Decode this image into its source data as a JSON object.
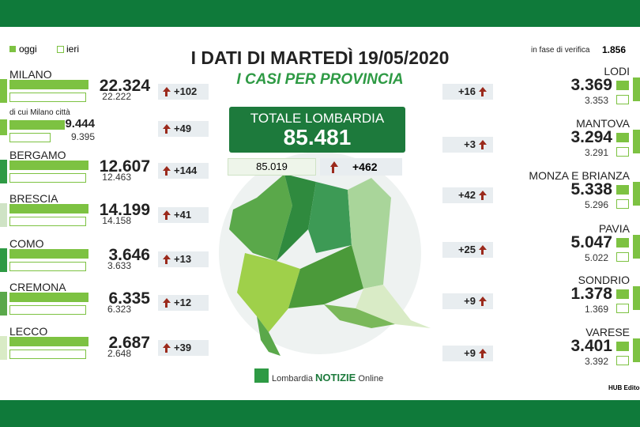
{
  "header": {
    "title": "I DATI DI MARTEDÌ 19/05/2020",
    "subtitle": "I CASI PER PROVINCIA",
    "legend": [
      "oggi",
      "ieri"
    ],
    "verification_label": "in fase di verifica",
    "verification_value": "1.856"
  },
  "total": {
    "label": "TOTALE LOMBARDIA",
    "today": "85.481",
    "yesterday": "85.019",
    "delta": "+462"
  },
  "left_provinces": [
    {
      "name": "MILANO",
      "today": "22.324",
      "yesterday": "22.222",
      "delta": "+102"
    },
    {
      "name": "di cui Milano città",
      "today": "9.444",
      "yesterday": "9.395",
      "delta": "+49"
    },
    {
      "name": "BERGAMO",
      "today": "12.607",
      "yesterday": "12.463",
      "delta": "+144"
    },
    {
      "name": "BRESCIA",
      "today": "14.199",
      "yesterday": "14.158",
      "delta": "+41"
    },
    {
      "name": "COMO",
      "today": "3.646",
      "yesterday": "3.633",
      "delta": "+13"
    },
    {
      "name": "CREMONA",
      "today": "6.335",
      "yesterday": "6.323",
      "delta": "+12"
    },
    {
      "name": "LECCO",
      "today": "2.687",
      "yesterday": "2.648",
      "delta": "+39"
    }
  ],
  "right_provinces": [
    {
      "name": "LODI",
      "today": "3.369",
      "yesterday": "3.353",
      "delta": "+16"
    },
    {
      "name": "MANTOVA",
      "today": "3.294",
      "yesterday": "3.291",
      "delta": "+3"
    },
    {
      "name": "MONZA E BRIANZA",
      "today": "5.338",
      "yesterday": "5.296",
      "delta": "+42"
    },
    {
      "name": "PAVIA",
      "today": "5.047",
      "yesterday": "5.022",
      "delta": "+25"
    },
    {
      "name": "SONDRIO",
      "today": "1.378",
      "yesterday": "1.369",
      "delta": "+9"
    },
    {
      "name": "VARESE",
      "today": "3.401",
      "yesterday": "3.392",
      "delta": "+9"
    }
  ],
  "footer": {
    "logo_brand": "Lombardia",
    "logo_main": "NOTIZIE",
    "logo_tail": "Online",
    "credit": "HUB Editor"
  }
}
